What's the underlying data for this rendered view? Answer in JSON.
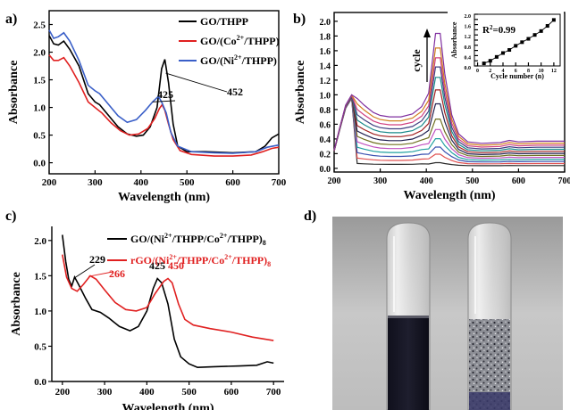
{
  "chart_data": [
    {
      "panel_label": "a)",
      "type": "line",
      "xlabel": "Wavelength (nm)",
      "ylabel": "Absorbance",
      "xlim": [
        200,
        700
      ],
      "ylim": [
        -0.2,
        2.75
      ],
      "xticks": [
        "200",
        "300",
        "400",
        "500",
        "600",
        "700"
      ],
      "yticks": [
        "0.0",
        "0.5",
        "1.0",
        "1.5",
        "2.0",
        "2.5"
      ],
      "legend_position": "top-right",
      "annotations": [
        {
          "text": "425",
          "x": 425,
          "y": 1.1
        },
        {
          "text": "452",
          "x": 452,
          "y": 1.87
        }
      ],
      "series": [
        {
          "name": "GO/THPP",
          "legend_main": "GO/THPP",
          "legend_sup": "",
          "legend_tail": "",
          "color": "#000000",
          "points": [
            [
              200,
              2.3
            ],
            [
              210,
              2.15
            ],
            [
              220,
              2.13
            ],
            [
              232,
              2.2
            ],
            [
              245,
              2.05
            ],
            [
              265,
              1.75
            ],
            [
              285,
              1.25
            ],
            [
              300,
              1.1
            ],
            [
              310,
              1.05
            ],
            [
              330,
              0.85
            ],
            [
              350,
              0.65
            ],
            [
              370,
              0.52
            ],
            [
              390,
              0.48
            ],
            [
              405,
              0.5
            ],
            [
              420,
              0.65
            ],
            [
              435,
              1.0
            ],
            [
              445,
              1.7
            ],
            [
              452,
              1.87
            ],
            [
              460,
              1.45
            ],
            [
              470,
              0.7
            ],
            [
              480,
              0.3
            ],
            [
              500,
              0.2
            ],
            [
              540,
              0.2
            ],
            [
              600,
              0.18
            ],
            [
              650,
              0.2
            ],
            [
              670,
              0.3
            ],
            [
              685,
              0.45
            ],
            [
              700,
              0.52
            ]
          ]
        },
        {
          "name": "GO/(Co2+/THPP)",
          "legend_main": "GO/(Co",
          "legend_sup": "2+",
          "legend_tail": "/THPP)",
          "color": "#e02020",
          "points": [
            [
              200,
              1.95
            ],
            [
              210,
              1.85
            ],
            [
              220,
              1.85
            ],
            [
              232,
              1.9
            ],
            [
              245,
              1.75
            ],
            [
              265,
              1.45
            ],
            [
              285,
              1.1
            ],
            [
              300,
              1.0
            ],
            [
              315,
              0.9
            ],
            [
              335,
              0.72
            ],
            [
              355,
              0.58
            ],
            [
              375,
              0.5
            ],
            [
              395,
              0.52
            ],
            [
              415,
              0.62
            ],
            [
              430,
              0.8
            ],
            [
              440,
              0.98
            ],
            [
              446,
              1.05
            ],
            [
              452,
              0.95
            ],
            [
              460,
              0.7
            ],
            [
              470,
              0.42
            ],
            [
              485,
              0.22
            ],
            [
              510,
              0.15
            ],
            [
              560,
              0.12
            ],
            [
              600,
              0.12
            ],
            [
              640,
              0.14
            ],
            [
              665,
              0.2
            ],
            [
              685,
              0.26
            ],
            [
              700,
              0.28
            ]
          ]
        },
        {
          "name": "GO/(Ni2+/THPP)",
          "legend_main": "GO/(Ni",
          "legend_sup": "2+",
          "legend_tail": "/THPP)",
          "color": "#3a5fc8",
          "points": [
            [
              200,
              2.4
            ],
            [
              210,
              2.25
            ],
            [
              220,
              2.28
            ],
            [
              232,
              2.35
            ],
            [
              245,
              2.2
            ],
            [
              265,
              1.85
            ],
            [
              285,
              1.4
            ],
            [
              300,
              1.3
            ],
            [
              310,
              1.25
            ],
            [
              330,
              1.05
            ],
            [
              350,
              0.85
            ],
            [
              370,
              0.73
            ],
            [
              390,
              0.78
            ],
            [
              410,
              0.95
            ],
            [
              425,
              1.1
            ],
            [
              438,
              1.2
            ],
            [
              445,
              1.1
            ],
            [
              455,
              0.9
            ],
            [
              465,
              0.55
            ],
            [
              480,
              0.3
            ],
            [
              510,
              0.2
            ],
            [
              560,
              0.18
            ],
            [
              600,
              0.17
            ],
            [
              650,
              0.2
            ],
            [
              675,
              0.28
            ],
            [
              700,
              0.32
            ]
          ]
        }
      ]
    },
    {
      "panel_label": "b)",
      "type": "line",
      "xlabel": "Wavelength (nm)",
      "ylabel": "Absorbance",
      "xlim": [
        200,
        700
      ],
      "ylim": [
        -0.05,
        2.12
      ],
      "xticks": [
        "200",
        "300",
        "400",
        "500",
        "600",
        "700"
      ],
      "yticks": [
        "0.0",
        "0.2",
        "0.4",
        "0.6",
        "0.8",
        "1.0",
        "1.2",
        "1.4",
        "1.6",
        "1.8",
        "2.0"
      ],
      "arrow_label": "cycle",
      "peak_values": [
        0.08,
        0.2,
        0.3,
        0.42,
        0.55,
        0.7,
        0.92,
        1.12,
        1.3,
        1.45,
        1.58,
        1.72,
        1.93
      ],
      "series_colors": [
        "#2a2a2a",
        "#e05050",
        "#3a50b0",
        "#20a0a0",
        "#c050c0",
        "#707020",
        "#202050",
        "#a02020",
        "#1a8a8a",
        "#404080",
        "#d04080",
        "#d08020",
        "#8030a0"
      ],
      "inset": {
        "type": "scatter",
        "xlabel": "Cycle number (n)",
        "ylabel": "Absorbance",
        "annotation_main": "R",
        "annotation_sup": "2",
        "annotation_tail": "=0.99",
        "xlim": [
          -0.5,
          13
        ],
        "ylim": [
          0,
          2.0
        ],
        "xticks": [
          "0",
          "2",
          "4",
          "6",
          "8",
          "10",
          "12"
        ],
        "yticks": [
          "0.0",
          "0.2",
          "0.4",
          "0.6",
          "0.8",
          "1.0",
          "1.2",
          "1.4",
          "1.6",
          "1.8",
          "2.0"
        ],
        "x": [
          1,
          2,
          3,
          4,
          5,
          6,
          7,
          8,
          9,
          10,
          11,
          12
        ],
        "y": [
          0.1,
          0.2,
          0.35,
          0.5,
          0.62,
          0.78,
          0.92,
          1.05,
          1.2,
          1.35,
          1.55,
          1.78
        ]
      }
    },
    {
      "panel_label": "c)",
      "type": "line",
      "xlabel": "Wavelength (nm)",
      "ylabel": "Absorbance",
      "xlim": [
        175,
        725
      ],
      "ylim": [
        0,
        2.2
      ],
      "xticks": [
        "200",
        "300",
        "400",
        "500",
        "600",
        "700"
      ],
      "yticks": [
        "0.0",
        "0.5",
        "1.0",
        "1.5",
        "2.0"
      ],
      "legend_position": "top-right",
      "annotations": [
        {
          "text": "229",
          "x": 229,
          "y": 1.6,
          "color": "#000000"
        },
        {
          "text": "266",
          "x": 266,
          "y": 1.5,
          "color": "#e02020"
        },
        {
          "text": "425",
          "x": 425,
          "y": 1.46,
          "color": "#000000"
        },
        {
          "text": "450",
          "x": 450,
          "y": 1.46,
          "color": "#e02020"
        }
      ],
      "series": [
        {
          "name": "GO/(Ni2+/THPP/Co2+/THPP)8",
          "legend_a": "GO/(Ni",
          "legend_b": "2+",
          "legend_c": "/THPP/Co",
          "legend_d": "2+",
          "legend_e": "/THPP)",
          "legend_f": "8",
          "color": "#000000",
          "points": [
            [
              200,
              2.08
            ],
            [
              208,
              1.7
            ],
            [
              215,
              1.45
            ],
            [
              222,
              1.35
            ],
            [
              229,
              1.48
            ],
            [
              238,
              1.38
            ],
            [
              255,
              1.18
            ],
            [
              270,
              1.02
            ],
            [
              290,
              0.98
            ],
            [
              310,
              0.9
            ],
            [
              335,
              0.78
            ],
            [
              360,
              0.72
            ],
            [
              380,
              0.78
            ],
            [
              400,
              1.0
            ],
            [
              415,
              1.32
            ],
            [
              425,
              1.46
            ],
            [
              435,
              1.4
            ],
            [
              450,
              1.1
            ],
            [
              465,
              0.6
            ],
            [
              480,
              0.35
            ],
            [
              500,
              0.25
            ],
            [
              520,
              0.2
            ],
            [
              560,
              0.21
            ],
            [
              620,
              0.22
            ],
            [
              660,
              0.23
            ],
            [
              685,
              0.28
            ],
            [
              700,
              0.26
            ]
          ]
        },
        {
          "name": "rGO/(Ni2+/THPP/Co2+/THPP)8",
          "legend_a": "rGO/(Ni",
          "legend_b": "2+",
          "legend_c": "/THPP/Co",
          "legend_d": "2+",
          "legend_e": "/THPP)",
          "legend_f": "8",
          "color": "#e02020",
          "points": [
            [
              200,
              1.8
            ],
            [
              210,
              1.48
            ],
            [
              222,
              1.32
            ],
            [
              235,
              1.28
            ],
            [
              250,
              1.38
            ],
            [
              266,
              1.5
            ],
            [
              280,
              1.45
            ],
            [
              300,
              1.3
            ],
            [
              325,
              1.12
            ],
            [
              350,
              1.02
            ],
            [
              375,
              1.0
            ],
            [
              400,
              1.05
            ],
            [
              420,
              1.25
            ],
            [
              440,
              1.42
            ],
            [
              450,
              1.46
            ],
            [
              460,
              1.4
            ],
            [
              475,
              1.1
            ],
            [
              490,
              0.88
            ],
            [
              510,
              0.8
            ],
            [
              550,
              0.75
            ],
            [
              600,
              0.7
            ],
            [
              650,
              0.63
            ],
            [
              700,
              0.58
            ]
          ]
        }
      ]
    }
  ],
  "panel_d_label": "d)"
}
